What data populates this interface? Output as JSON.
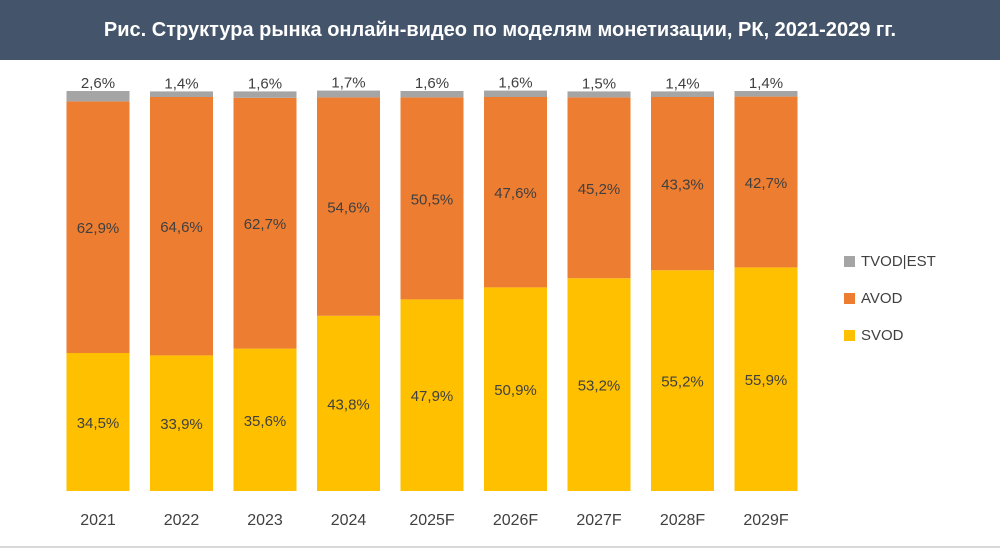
{
  "header": {
    "title": "Рис. Структура рынка онлайн-видео по моделям монетизации, РК, 2021-2029 гг."
  },
  "colors": {
    "header_bg": "#44546a",
    "svod": "#ffc000",
    "avod": "#ed7d31",
    "tvod": "#a5a5a5",
    "label_text": "#404040"
  },
  "chart_data": {
    "type": "bar",
    "stacked": true,
    "percent_stacked": true,
    "title": "Рис. Структура рынка онлайн-видео по моделям монетизации, РК, 2021-2029 гг.",
    "xlabel": "",
    "ylabel": "",
    "ylim": [
      0,
      100
    ],
    "grid": false,
    "legend_position": "right",
    "categories": [
      "2021",
      "2022",
      "2023",
      "2024",
      "2025F",
      "2026F",
      "2027F",
      "2028F",
      "2029F"
    ],
    "series": [
      {
        "name": "SVOD",
        "color": "#ffc000",
        "values": [
          34.5,
          33.9,
          35.6,
          43.8,
          47.9,
          50.9,
          53.2,
          55.2,
          55.9
        ],
        "labels": [
          "34,5%",
          "33,9%",
          "35,6%",
          "43,8%",
          "47,9%",
          "50,9%",
          "53,2%",
          "55,2%",
          "55,9%"
        ]
      },
      {
        "name": "AVOD",
        "color": "#ed7d31",
        "values": [
          62.9,
          64.6,
          62.7,
          54.6,
          50.5,
          47.6,
          45.2,
          43.3,
          42.7
        ],
        "labels": [
          "62,9%",
          "64,6%",
          "62,7%",
          "54,6%",
          "50,5%",
          "47,6%",
          "45,2%",
          "43,3%",
          "42,7%"
        ]
      },
      {
        "name": "TVOD|EST",
        "color": "#a5a5a5",
        "values": [
          2.6,
          1.4,
          1.6,
          1.7,
          1.6,
          1.6,
          1.5,
          1.4,
          1.4
        ],
        "labels": [
          "2,6%",
          "1,4%",
          "1,6%",
          "1,7%",
          "1,6%",
          "1,6%",
          "1,5%",
          "1,4%",
          "1,4%"
        ]
      }
    ],
    "legend": [
      "TVOD|EST",
      "AVOD",
      "SVOD"
    ]
  }
}
